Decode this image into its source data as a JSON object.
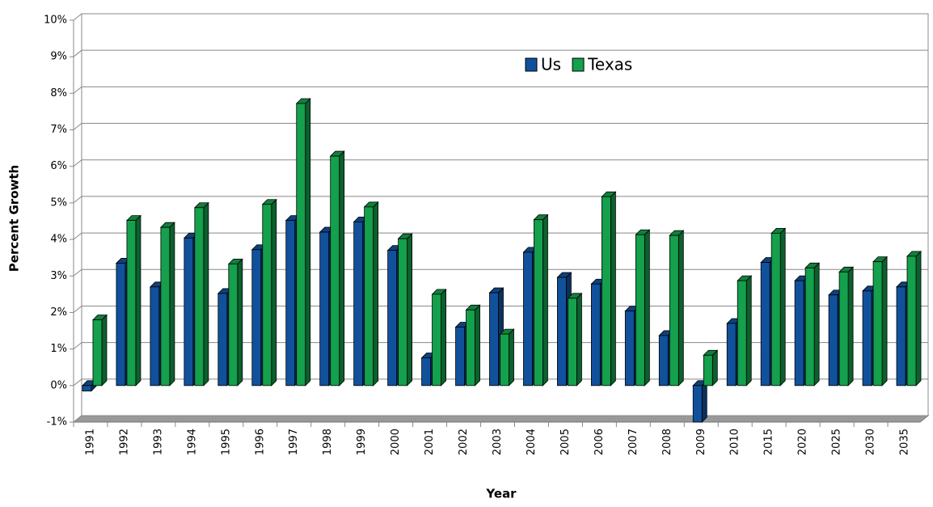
{
  "chart_data": {
    "type": "bar3d",
    "ylabel": "Percent Growth",
    "xlabel": "Year",
    "categories": [
      "1991",
      "1992",
      "1993",
      "1994",
      "1995",
      "1996",
      "1997",
      "1998",
      "1999",
      "2000",
      "2001",
      "2002",
      "2003",
      "2004",
      "2005",
      "2006",
      "2007",
      "2008",
      "2009",
      "2010",
      "2015",
      "2020",
      "2025",
      "2030",
      "2035"
    ],
    "series": [
      {
        "name": "Us",
        "color": "#11519c",
        "values": [
          -0.15,
          3.35,
          2.7,
          4.04,
          2.52,
          3.72,
          4.52,
          4.2,
          4.48,
          3.7,
          0.76,
          1.6,
          2.54,
          3.65,
          2.96,
          2.78,
          2.04,
          1.37,
          -1.0,
          1.7,
          3.37,
          2.87,
          2.48,
          2.59,
          2.7
        ]
      },
      {
        "name": "Texas",
        "color": "#14a04c",
        "values": [
          1.8,
          4.52,
          4.33,
          4.87,
          3.33,
          4.96,
          7.72,
          6.28,
          4.89,
          4.02,
          2.5,
          2.07,
          1.41,
          4.54,
          2.39,
          5.17,
          4.13,
          4.11,
          0.83,
          2.87,
          4.17,
          3.22,
          3.11,
          3.39,
          3.54
        ]
      }
    ],
    "ylim": [
      -1,
      10
    ],
    "yticks": [
      {
        "value": -1,
        "label": "-1%"
      },
      {
        "value": 0,
        "label": "0%"
      },
      {
        "value": 1,
        "label": "1%"
      },
      {
        "value": 2,
        "label": "2%"
      },
      {
        "value": 3,
        "label": "3%"
      },
      {
        "value": 4,
        "label": "4%"
      },
      {
        "value": 5,
        "label": "5%"
      },
      {
        "value": 6,
        "label": "6%"
      },
      {
        "value": 7,
        "label": "7%"
      },
      {
        "value": 8,
        "label": "8%"
      },
      {
        "value": 9,
        "label": "9%"
      },
      {
        "value": 10,
        "label": "10%"
      }
    ],
    "grid": true
  }
}
